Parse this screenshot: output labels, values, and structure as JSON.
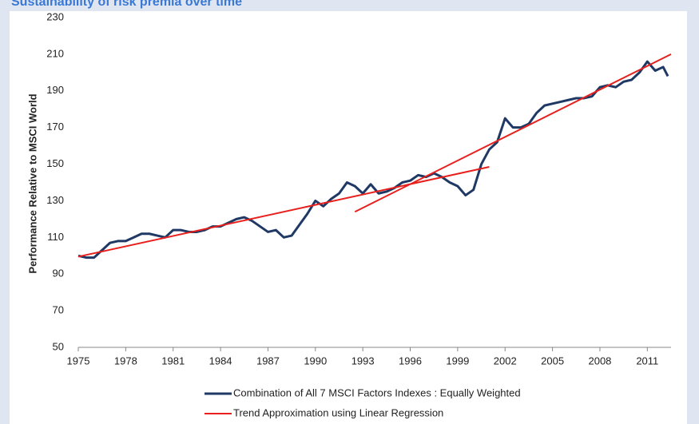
{
  "chart_data": {
    "type": "line",
    "title": "Sustainability of risk premia over time",
    "ylabel": "Performance Relative to MSCI World",
    "xlim": [
      1975,
      2012.5
    ],
    "xticks": [
      1975,
      1978,
      1981,
      1984,
      1987,
      1990,
      1993,
      1996,
      1999,
      2002,
      2005,
      2008,
      2011
    ],
    "ylim": [
      50,
      230
    ],
    "yticks": [
      50,
      70,
      90,
      110,
      130,
      150,
      170,
      190,
      210,
      230
    ],
    "grid": false,
    "legend": "bottom",
    "series": [
      {
        "name": "Combination of All 7 MSCI Factors Indexes : Equally Weighted",
        "color": "#1f3864",
        "x": [
          1975,
          1975.5,
          1976,
          1976.5,
          1977,
          1977.5,
          1978,
          1978.5,
          1979,
          1979.5,
          1980,
          1980.5,
          1981,
          1981.5,
          1982,
          1982.5,
          1983,
          1983.5,
          1984,
          1984.5,
          1985,
          1985.5,
          1986,
          1986.5,
          1987,
          1987.5,
          1988,
          1988.5,
          1989,
          1989.5,
          1990,
          1990.5,
          1991,
          1991.5,
          1992,
          1992.5,
          1993,
          1993.5,
          1994,
          1994.5,
          1995,
          1995.5,
          1996,
          1996.5,
          1997,
          1997.5,
          1998,
          1998.5,
          1999,
          1999.5,
          2000,
          2000.5,
          2001,
          2001.5,
          2002,
          2002.5,
          2003,
          2003.5,
          2004,
          2004.5,
          2005,
          2005.5,
          2006,
          2006.5,
          2007,
          2007.5,
          2008,
          2008.5,
          2009,
          2009.5,
          2010,
          2010.5,
          2011,
          2011.5,
          2012,
          2012.3
        ],
        "values": [
          100,
          99,
          99,
          103,
          107,
          108,
          108,
          110,
          112,
          112,
          111,
          110,
          114,
          114,
          113,
          113,
          114,
          116,
          116,
          118,
          120,
          121,
          119,
          116,
          113,
          114,
          110,
          111,
          117,
          123,
          130,
          127,
          131,
          134,
          140,
          138,
          134,
          139,
          134,
          135,
          137,
          140,
          141,
          144,
          143,
          145,
          143,
          140,
          138,
          133,
          136,
          150,
          158,
          162,
          175,
          170,
          170,
          172,
          178,
          182,
          183,
          184,
          185,
          186,
          186,
          187,
          192,
          193,
          192,
          195,
          196,
          200,
          206,
          201,
          203,
          198
        ]
      },
      {
        "name": "Trend Approximation using Linear Regression",
        "color": "#e8201c",
        "x": [
          1975,
          2001,
          1992.5,
          1992.5,
          2012.5
        ],
        "values": [
          99.5,
          148.5,
          null,
          124,
          210
        ]
      }
    ]
  }
}
